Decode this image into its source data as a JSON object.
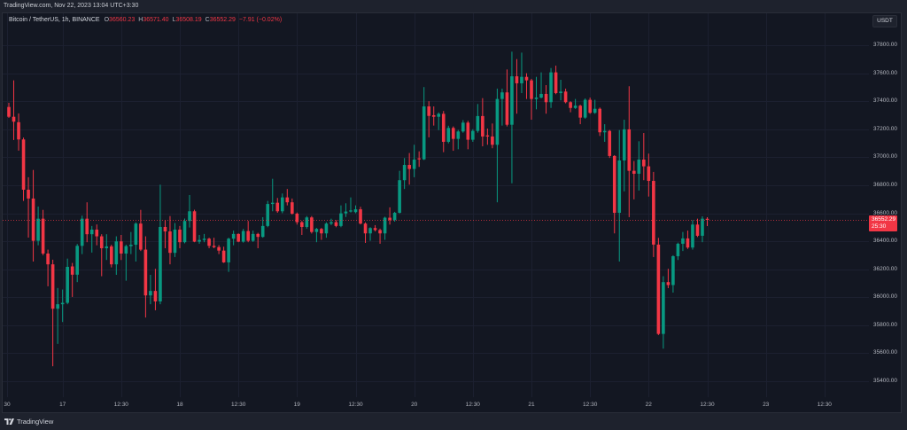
{
  "header": {
    "watermark": "TradingView.com, Nov 22, 2023 13:04 UTC+3:30"
  },
  "legend": {
    "symbol": "Bitcoin / TetherUS, 1h, BINANCE",
    "o_label": "O",
    "o": "36560.23",
    "h_label": "H",
    "h": "36571.40",
    "l_label": "L",
    "l": "36508.19",
    "c_label": "C",
    "c": "36552.29",
    "change": "−7.91 (−0.02%)"
  },
  "price_scale": {
    "currency": "USDT",
    "labels": [
      "37800.00",
      "37600.00",
      "37400.00",
      "37200.00",
      "37000.00",
      "36800.00",
      "36600.00",
      "36400.00",
      "36200.00",
      "36000.00",
      "35800.00",
      "35600.00",
      "35400.00"
    ]
  },
  "last_price": {
    "value": "36552.29",
    "countdown": "25:30"
  },
  "footer": {
    "logo_text": "TradingView"
  },
  "colors": {
    "up": "#089981",
    "down": "#f23645",
    "background": "#131722",
    "frame": "#1e222d",
    "grid": "#1c2030",
    "axis_text": "#b2b5be"
  },
  "chart_data": {
    "type": "candlestick",
    "title": "Bitcoin / TetherUS, 1h, BINANCE",
    "xlabel": "",
    "ylabel": "USDT",
    "grid": true,
    "y_ticks": [
      37800,
      37600,
      37400,
      37200,
      37000,
      36800,
      36600,
      36400,
      36200,
      36000,
      35800,
      35600,
      35400
    ],
    "ylim": [
      35287,
      38034
    ],
    "y_pixel_map": {
      "price": [
        37800,
        35400
      ],
      "y": [
        51,
        430
      ]
    },
    "bar_layout": {
      "first_x": 10,
      "spacing": 5.514
    },
    "x_ticks": [
      {
        "label": "30",
        "x": 8
      },
      {
        "label": "17",
        "x": 70.7
      },
      {
        "label": "12:30",
        "x": 136.8
      },
      {
        "label": "18",
        "x": 203
      },
      {
        "label": "12:30",
        "x": 269.2
      },
      {
        "label": "19",
        "x": 335.3
      },
      {
        "label": "12:30",
        "x": 401.5
      },
      {
        "label": "20",
        "x": 467.7
      },
      {
        "label": "12:30",
        "x": 533.8
      },
      {
        "label": "21",
        "x": 600
      },
      {
        "label": "12:30",
        "x": 666.2
      },
      {
        "label": "22",
        "x": 732.3
      },
      {
        "label": "12:30",
        "x": 798.5
      },
      {
        "label": "23",
        "x": 864.7
      },
      {
        "label": "12:30",
        "x": 930.8
      }
    ],
    "last_price": 36552.29,
    "candle_fields": [
      "open",
      "high",
      "low",
      "close"
    ],
    "candles": [
      [
        37359,
        37389,
        37281,
        37289
      ],
      [
        37289,
        37549,
        37123,
        37254
      ],
      [
        37250,
        37313,
        37047,
        37127
      ],
      [
        37127,
        37140,
        36688,
        36768
      ],
      [
        36768,
        36857,
        36426,
        36705
      ],
      [
        36705,
        36909,
        36255,
        36403
      ],
      [
        36403,
        36648,
        36371,
        36561
      ],
      [
        36561,
        36624,
        36300,
        36312
      ],
      [
        36312,
        36340,
        36078,
        36235
      ],
      [
        36235,
        36268,
        35507,
        35918
      ],
      [
        35918,
        36066,
        35667,
        35950
      ],
      [
        35950,
        36055,
        35823,
        35960
      ],
      [
        35960,
        36276,
        35950,
        36217
      ],
      [
        36220,
        36245,
        36002,
        36161
      ],
      [
        36161,
        36380,
        36108,
        36367
      ],
      [
        36367,
        36583,
        36308,
        36561
      ],
      [
        36561,
        36678,
        36393,
        36450
      ],
      [
        36450,
        36509,
        36319,
        36483
      ],
      [
        36483,
        36520,
        36371,
        36435
      ],
      [
        36435,
        36450,
        36150,
        36350
      ],
      [
        36350,
        36450,
        36266,
        36363
      ],
      [
        36363,
        36375,
        36213,
        36235
      ],
      [
        36235,
        36435,
        36160,
        36399
      ],
      [
        36399,
        36445,
        36266,
        36312
      ],
      [
        36312,
        36375,
        36118,
        36365
      ],
      [
        36365,
        36466,
        36308,
        36375
      ],
      [
        36375,
        36535,
        36255,
        36526
      ],
      [
        36526,
        36624,
        36330,
        36340
      ],
      [
        36340,
        36435,
        35855,
        36013
      ],
      [
        36013,
        36160,
        35950,
        36045
      ],
      [
        36045,
        36203,
        35907,
        35970
      ],
      [
        35970,
        36804,
        35950,
        36502
      ],
      [
        36502,
        36551,
        36350,
        36470
      ],
      [
        36470,
        36580,
        36235,
        36317
      ],
      [
        36317,
        36530,
        36287,
        36483
      ],
      [
        36483,
        36509,
        36350,
        36393
      ],
      [
        36393,
        36562,
        36385,
        36545
      ],
      [
        36545,
        36730,
        36498,
        36614
      ],
      [
        36614,
        36625,
        36393,
        36397
      ],
      [
        36397,
        36445,
        36382,
        36409
      ],
      [
        36409,
        36452,
        36393,
        36418
      ],
      [
        36418,
        36425,
        36350,
        36367
      ],
      [
        36367,
        36425,
        36350,
        36358
      ],
      [
        36358,
        36372,
        36308,
        36333
      ],
      [
        36333,
        36361,
        36245,
        36249
      ],
      [
        36249,
        36425,
        36181,
        36418
      ],
      [
        36418,
        36476,
        36371,
        36452
      ],
      [
        36452,
        36456,
        36393,
        36397
      ],
      [
        36397,
        36488,
        36390,
        36473
      ],
      [
        36473,
        36545,
        36393,
        36403
      ],
      [
        36403,
        36476,
        36395,
        36452
      ],
      [
        36452,
        36460,
        36350,
        36431
      ],
      [
        36431,
        36572,
        36425,
        36509
      ],
      [
        36509,
        36688,
        36500,
        36666
      ],
      [
        36666,
        36846,
        36614,
        36675
      ],
      [
        36675,
        36709,
        36603,
        36614
      ],
      [
        36614,
        36741,
        36600,
        36713
      ],
      [
        36713,
        36773,
        36656,
        36678
      ],
      [
        36678,
        36705,
        36590,
        36597
      ],
      [
        36597,
        36605,
        36519,
        36536
      ],
      [
        36536,
        36545,
        36445,
        36502
      ],
      [
        36502,
        36580,
        36490,
        36570
      ],
      [
        36570,
        36580,
        36455,
        36466
      ],
      [
        36466,
        36495,
        36393,
        36488
      ],
      [
        36488,
        36495,
        36410,
        36456
      ],
      [
        36456,
        36535,
        36425,
        36526
      ],
      [
        36526,
        36561,
        36515,
        36536
      ],
      [
        36536,
        36551,
        36500,
        36509
      ],
      [
        36509,
        36656,
        36500,
        36599
      ],
      [
        36599,
        36671,
        36573,
        36612
      ],
      [
        36612,
        36713,
        36605,
        36620
      ],
      [
        36608,
        36656,
        36600,
        36628
      ],
      [
        36628,
        36646,
        36520,
        36526
      ],
      [
        36526,
        36535,
        36388,
        36456
      ],
      [
        36456,
        36500,
        36403,
        36494
      ],
      [
        36494,
        36515,
        36470,
        36480
      ],
      [
        36480,
        36490,
        36382,
        36456
      ],
      [
        36456,
        36575,
        36410,
        36568
      ],
      [
        36568,
        36642,
        36519,
        36551
      ],
      [
        36551,
        36610,
        36540,
        36603
      ],
      [
        36603,
        36903,
        36598,
        36836
      ],
      [
        36836,
        36994,
        36773,
        36945
      ],
      [
        36945,
        37030,
        36804,
        36916
      ],
      [
        36916,
        37089,
        36857,
        36983
      ],
      [
        36992,
        37042,
        36931,
        36985
      ],
      [
        36985,
        37501,
        36980,
        37363
      ],
      [
        37363,
        37400,
        37142,
        37295
      ],
      [
        37300,
        37363,
        37226,
        37289
      ],
      [
        37289,
        37320,
        37194,
        37310
      ],
      [
        37310,
        37330,
        37036,
        37110
      ],
      [
        37110,
        37225,
        37099,
        37209
      ],
      [
        37209,
        37220,
        37046,
        37131
      ],
      [
        37131,
        37195,
        37057,
        37184
      ],
      [
        37184,
        37265,
        37175,
        37247
      ],
      [
        37247,
        37260,
        37057,
        37125
      ],
      [
        37125,
        37200,
        37110,
        37188
      ],
      [
        37188,
        37380,
        37175,
        37294
      ],
      [
        37294,
        37422,
        37078,
        37148
      ],
      [
        37156,
        37205,
        37089,
        37148
      ],
      [
        37148,
        37241,
        37064,
        37089
      ],
      [
        37089,
        37490,
        36678,
        37416
      ],
      [
        37416,
        37490,
        37226,
        37463
      ],
      [
        37463,
        37627,
        37220,
        37232
      ],
      [
        37232,
        37754,
        36814,
        37578
      ],
      [
        37578,
        37701,
        37311,
        37528
      ],
      [
        37528,
        37747,
        37458,
        37574
      ],
      [
        37574,
        37600,
        37416,
        37549
      ],
      [
        37549,
        37560,
        37268,
        37416
      ],
      [
        37416,
        37574,
        37342,
        37426
      ],
      [
        37426,
        37606,
        37420,
        37452
      ],
      [
        37452,
        37515,
        37311,
        37393
      ],
      [
        37393,
        37637,
        37352,
        37606
      ],
      [
        37606,
        37654,
        37450,
        37458
      ],
      [
        37458,
        37553,
        37406,
        37469
      ],
      [
        37469,
        37490,
        37385,
        37393
      ],
      [
        37393,
        37400,
        37321,
        37352
      ],
      [
        37352,
        37416,
        37345,
        37368
      ],
      [
        37368,
        37375,
        37236,
        37283
      ],
      [
        37283,
        37420,
        37275,
        37410
      ],
      [
        37410,
        37426,
        37310,
        37317
      ],
      [
        37317,
        37410,
        37310,
        37346
      ],
      [
        37346,
        37355,
        37152,
        37178
      ],
      [
        37178,
        37236,
        37110,
        37188
      ],
      [
        37188,
        37195,
        36995,
        37009
      ],
      [
        37009,
        37015,
        36456,
        36603
      ],
      [
        36603,
        37194,
        36255,
        36977
      ],
      [
        36977,
        37268,
        36756,
        37199
      ],
      [
        37199,
        37507,
        36572,
        36903
      ],
      [
        36903,
        36973,
        36699,
        36882
      ],
      [
        36882,
        37114,
        36762,
        36983
      ],
      [
        36983,
        37173,
        36836,
        36935
      ],
      [
        36935,
        37026,
        36719,
        36831
      ],
      [
        36831,
        36895,
        36287,
        36376
      ],
      [
        36376,
        36424,
        35730,
        35738
      ],
      [
        35738,
        36150,
        35633,
        36108
      ],
      [
        36108,
        36203,
        36065,
        36087
      ],
      [
        36087,
        36300,
        36033,
        36293
      ],
      [
        36293,
        36390,
        36266,
        36382
      ],
      [
        36382,
        36466,
        36330,
        36420
      ],
      [
        36420,
        36476,
        36345,
        36355
      ],
      [
        36355,
        36551,
        36340,
        36519
      ],
      [
        36519,
        36561,
        36430,
        36439
      ],
      [
        36439,
        36578,
        36393,
        36561
      ],
      [
        36560.23,
        36571.4,
        36508.19,
        36552.29
      ]
    ]
  }
}
